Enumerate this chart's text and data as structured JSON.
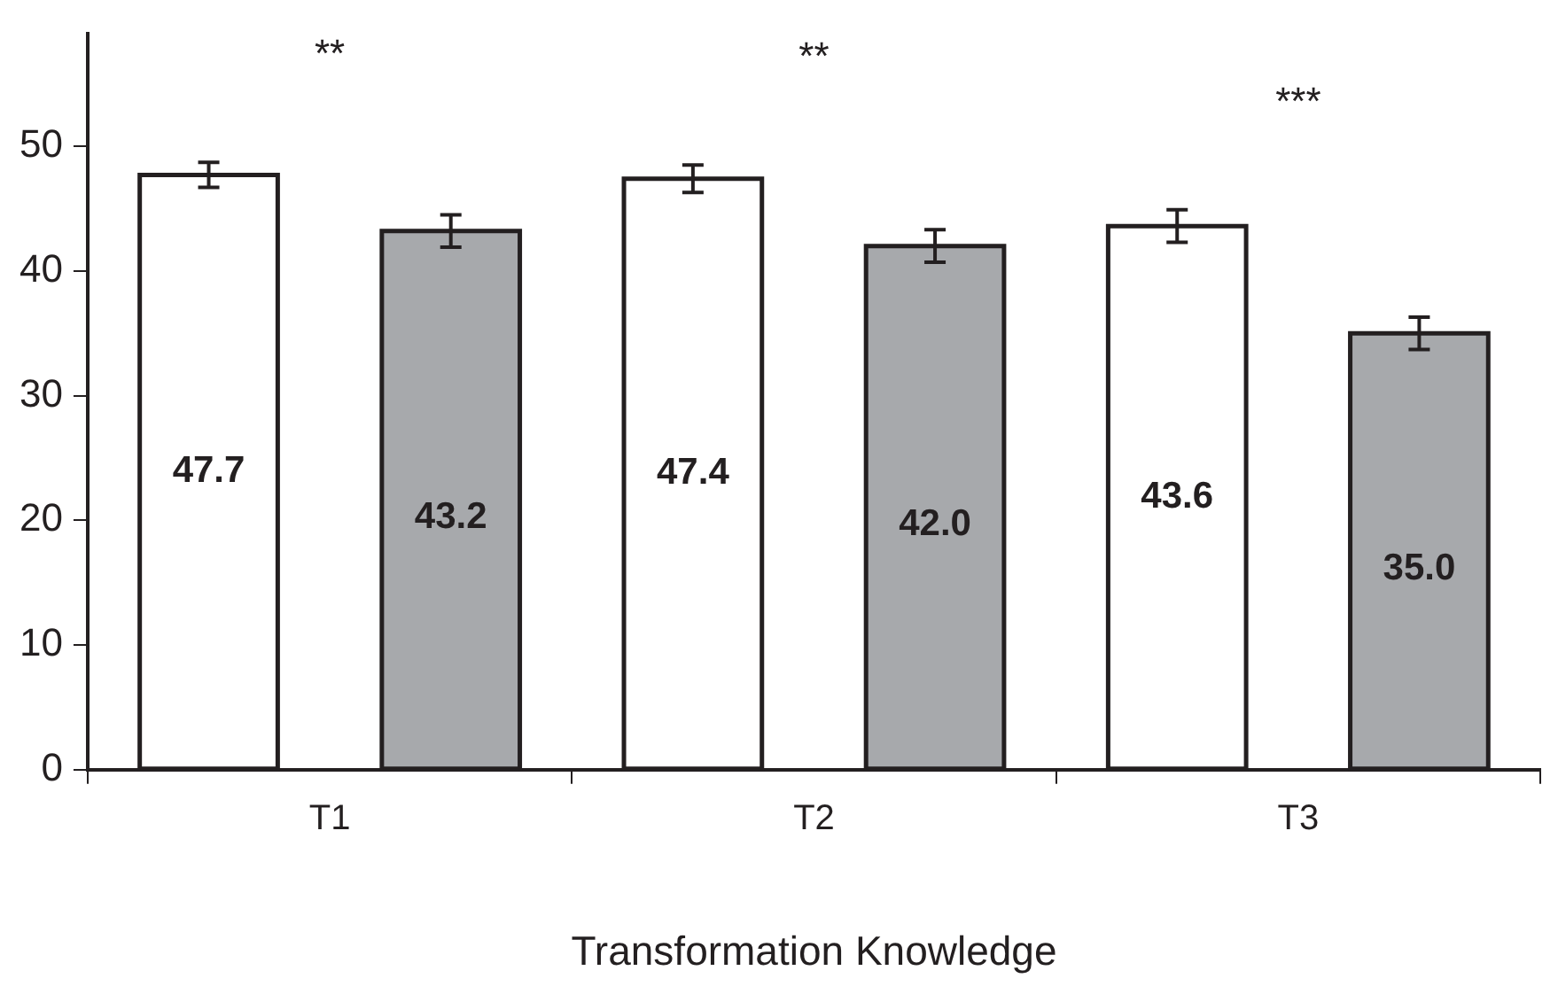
{
  "chart_data": {
    "type": "bar",
    "xlabel": "Transformation Knowledge",
    "categories": [
      "T1",
      "T2",
      "T3"
    ],
    "series": [
      {
        "color": "#ffffff",
        "values": [
          47.7,
          47.4,
          43.6
        ],
        "errors": [
          1.0,
          1.1,
          1.3
        ],
        "value_labels": [
          "47.7",
          "47.4",
          "43.6"
        ]
      },
      {
        "color": "#a7a9ac",
        "values": [
          43.2,
          42.0,
          35.0
        ],
        "errors": [
          1.3,
          1.3,
          1.3
        ],
        "value_labels": [
          "43.2",
          "42.0",
          "35.0"
        ]
      }
    ],
    "ylim": [
      0,
      59
    ],
    "yticks": [
      0,
      10,
      20,
      30,
      40,
      50
    ],
    "grid": false,
    "legend": false,
    "annotations": [
      "**",
      "**",
      "***"
    ]
  }
}
